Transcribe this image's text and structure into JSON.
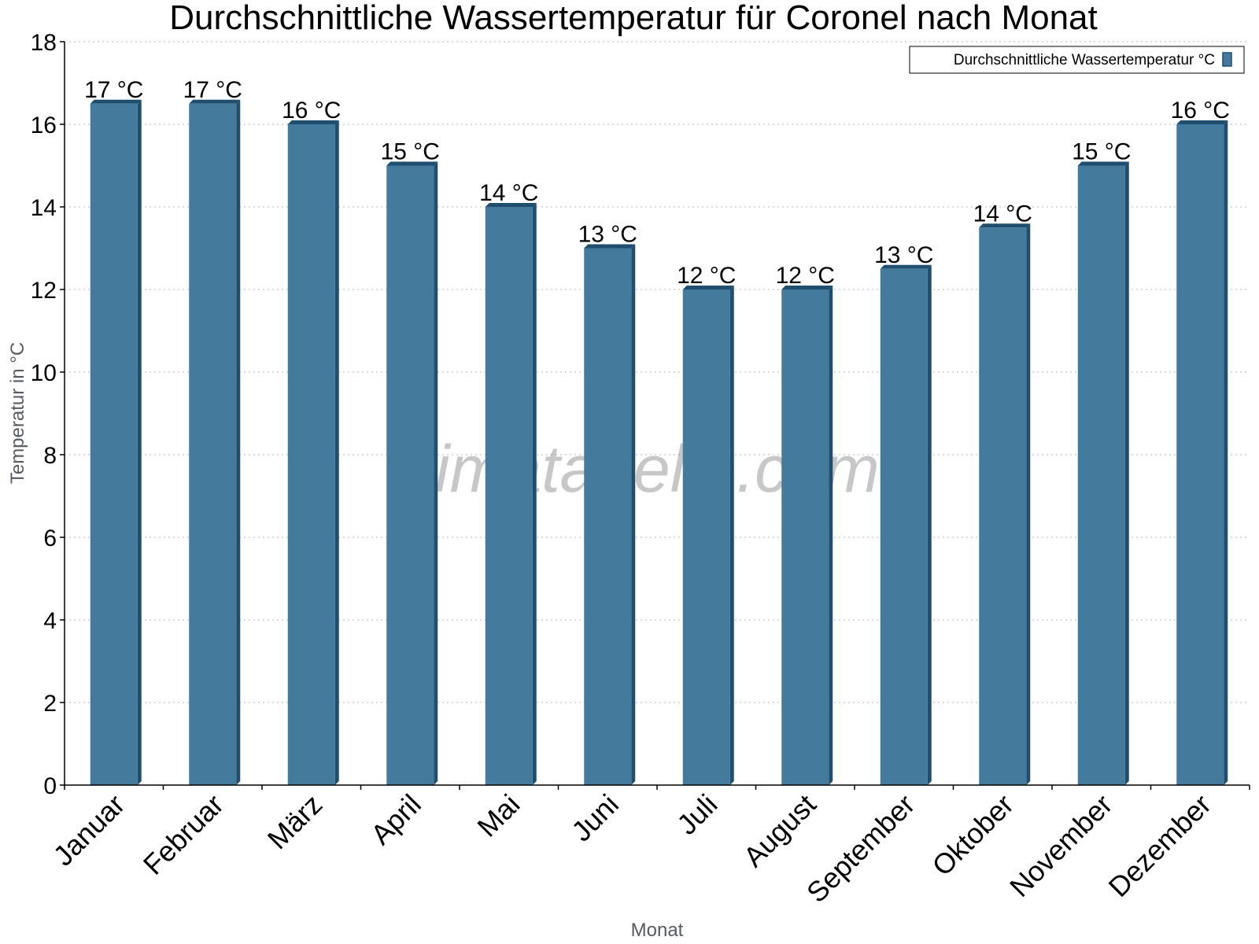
{
  "chart_data": {
    "type": "bar",
    "title": "Durchschnittliche Wassertemperatur für Coronel nach Monat",
    "xlabel": "Monat",
    "ylabel": "Temperatur in °C",
    "categories": [
      "Januar",
      "Februar",
      "März",
      "April",
      "Mai",
      "Juni",
      "Juli",
      "August",
      "September",
      "Oktober",
      "November",
      "Dezember"
    ],
    "series": [
      {
        "name": "Durchschnittliche Wassertemperatur °C",
        "values": [
          16.5,
          16.5,
          16,
          15,
          14,
          13,
          12,
          12,
          12.5,
          13.5,
          15,
          16
        ],
        "labels": [
          "17 °C",
          "17 °C",
          "16 °C",
          "15 °C",
          "14 °C",
          "13 °C",
          "12 °C",
          "12 °C",
          "13 °C",
          "14 °C",
          "15 °C",
          "16 °C"
        ],
        "color": "#447a9c",
        "side_color": "#1f4e6e"
      }
    ],
    "ylim": [
      0,
      18
    ],
    "yticks": [
      0,
      2,
      4,
      6,
      8,
      10,
      12,
      14,
      16,
      18
    ],
    "grid": true,
    "legend_position": "top-right",
    "watermark": "klimatabelle.com"
  }
}
